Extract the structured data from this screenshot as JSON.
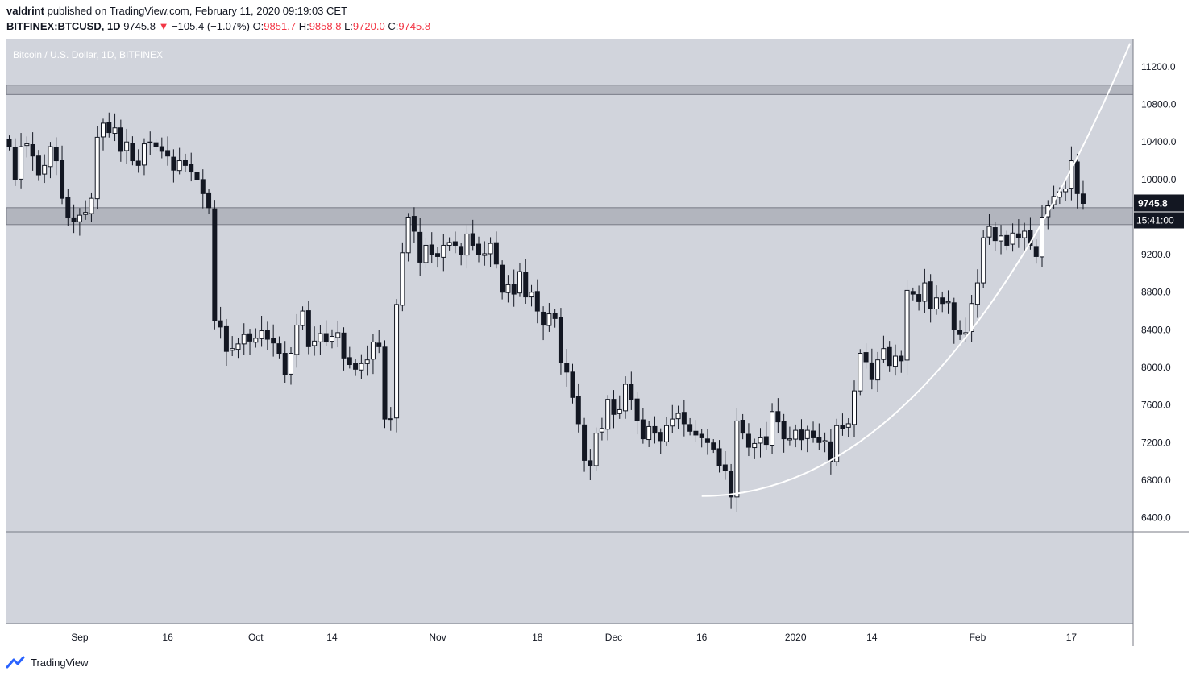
{
  "header": {
    "publisher": "valdrint",
    "published_text": "published on TradingView.com, February 11, 2020 09:19:03 CET",
    "symbol": "BITFINEX:BTCUSD, 1D",
    "last": "9745.8",
    "change": "−105.4 (−1.07%)",
    "o_label": "O:",
    "o": "9851.7",
    "h_label": "H:",
    "h": "9858.8",
    "l_label": "L:",
    "l": "9720.0",
    "c_label": "C:",
    "c": "9745.8"
  },
  "footer": {
    "brand": "TradingView"
  },
  "colors": {
    "bg": "#d1d4dc",
    "rsi_bg": "#e0e3eb",
    "zone": "#b2b5be",
    "candle_up": "#ffffff",
    "candle_down": "#131722",
    "curve": "#ffffff",
    "price_tag": "#131722"
  },
  "chart_data": {
    "type": "candlestick",
    "title": "Bitcoin / U.S. Dollar, 1D, BITFINEX",
    "y_ticks": [
      "11200.0",
      "10800.0",
      "10400.0",
      "10000.0",
      "9600.0",
      "9200.0",
      "8800.0",
      "8400.0",
      "8000.0",
      "7600.0",
      "7200.0",
      "6800.0",
      "6400.0"
    ],
    "ylim": [
      6250,
      11500
    ],
    "x_ticks": [
      {
        "label": "Sep",
        "i": 12
      },
      {
        "label": "16",
        "i": 27
      },
      {
        "label": "Oct",
        "i": 42
      },
      {
        "label": "14",
        "i": 55
      },
      {
        "label": "Nov",
        "i": 73
      },
      {
        "label": "18",
        "i": 90
      },
      {
        "label": "Dec",
        "i": 103
      },
      {
        "label": "16",
        "i": 118
      },
      {
        "label": "2020",
        "i": 134
      },
      {
        "label": "14",
        "i": 147
      },
      {
        "label": "Feb",
        "i": 165
      },
      {
        "label": "17",
        "i": 181
      }
    ],
    "x_count": 192,
    "resistance_zones": [
      [
        10905,
        11005
      ],
      [
        9520,
        9700
      ]
    ],
    "current_price_label": "9745.8",
    "countdown_label": "15:41:00",
    "last_price": 9745.8,
    "curve_start": {
      "i": 118,
      "price": 6630
    },
    "curve_end": {
      "i": 191,
      "price": 11450
    },
    "closes": [
      10350,
      10000,
      10350,
      10380,
      10250,
      10050,
      10150,
      10350,
      10200,
      9800,
      9600,
      9550,
      9620,
      9650,
      9800,
      10450,
      10600,
      10500,
      10550,
      10300,
      10400,
      10200,
      10150,
      10380,
      10400,
      10350,
      10300,
      10250,
      10100,
      10200,
      10150,
      10080,
      10000,
      9850,
      9700,
      8500,
      8430,
      8170,
      8200,
      8250,
      8350,
      8280,
      8310,
      8390,
      8300,
      8260,
      8150,
      7920,
      8150,
      8450,
      8600,
      8220,
      8280,
      8360,
      8270,
      8330,
      8370,
      8100,
      8030,
      7980,
      8040,
      8080,
      8270,
      8220,
      7450,
      7450,
      8670,
      9220,
      9600,
      9450,
      9120,
      9300,
      9200,
      9180,
      9300,
      9330,
      9300,
      9200,
      9420,
      9300,
      9200,
      9210,
      9320,
      9100,
      8800,
      8880,
      8780,
      9020,
      8750,
      8800,
      8600,
      8450,
      8570,
      8520,
      8050,
      7950,
      7680,
      7400,
      7010,
      6950,
      7300,
      7350,
      7660,
      7500,
      7550,
      7820,
      7660,
      7430,
      7240,
      7370,
      7300,
      7220,
      7380,
      7450,
      7510,
      7400,
      7320,
      7280,
      7250,
      7200,
      7130,
      6950,
      6900,
      6620,
      7430,
      7300,
      7150,
      7190,
      7250,
      7180,
      7530,
      7420,
      7240,
      7240,
      7330,
      7230,
      7330,
      7250,
      7200,
      7220,
      7000,
      7380,
      7350,
      7400,
      7750,
      8150,
      8060,
      7870,
      8080,
      8200,
      8020,
      8120,
      8070,
      8820,
      8780,
      8700,
      8900,
      8630,
      8740,
      8680,
      8700,
      8400,
      8350,
      8370,
      8680,
      8900,
      9380,
      9500,
      9350,
      9400,
      9300,
      9430,
      9380,
      9450,
      9300,
      9180,
      9600,
      9720,
      9820,
      9870,
      9900,
      10200,
      9850,
      9745.8
    ]
  }
}
